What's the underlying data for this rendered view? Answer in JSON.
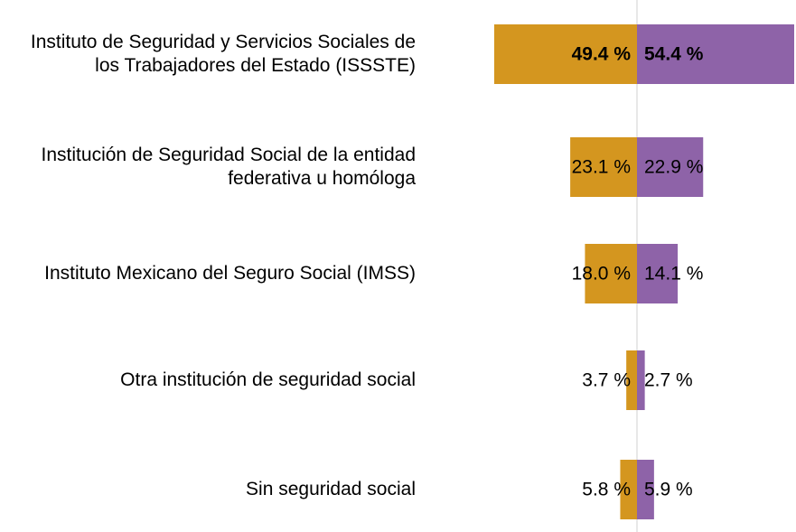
{
  "chart_data": {
    "type": "butterfly",
    "categories": [
      "Instituto de Seguridad y Servicios Sociales de los Trabajadores del Estado (ISSSTE)",
      "Institución de Seguridad Social de la entidad federativa u homóloga",
      "Instituto Mexicano del Seguro Social (IMSS)",
      "Otra institución de seguridad social",
      "Sin seguridad social"
    ],
    "series": [
      {
        "color": "#D4961F",
        "values": [
          49.4,
          23.1,
          18.0,
          3.7,
          5.8
        ],
        "value_labels": [
          "49.4 %",
          "23.1 %",
          "18.0 %",
          "3.7 %",
          "5.8 %"
        ]
      },
      {
        "color": "#8E63A8",
        "values": [
          54.4,
          22.9,
          14.1,
          2.7,
          5.9
        ],
        "value_labels": [
          "54.4 %",
          "22.9 %",
          "14.1 %",
          "2.7 %",
          "5.9 %"
        ]
      }
    ]
  }
}
